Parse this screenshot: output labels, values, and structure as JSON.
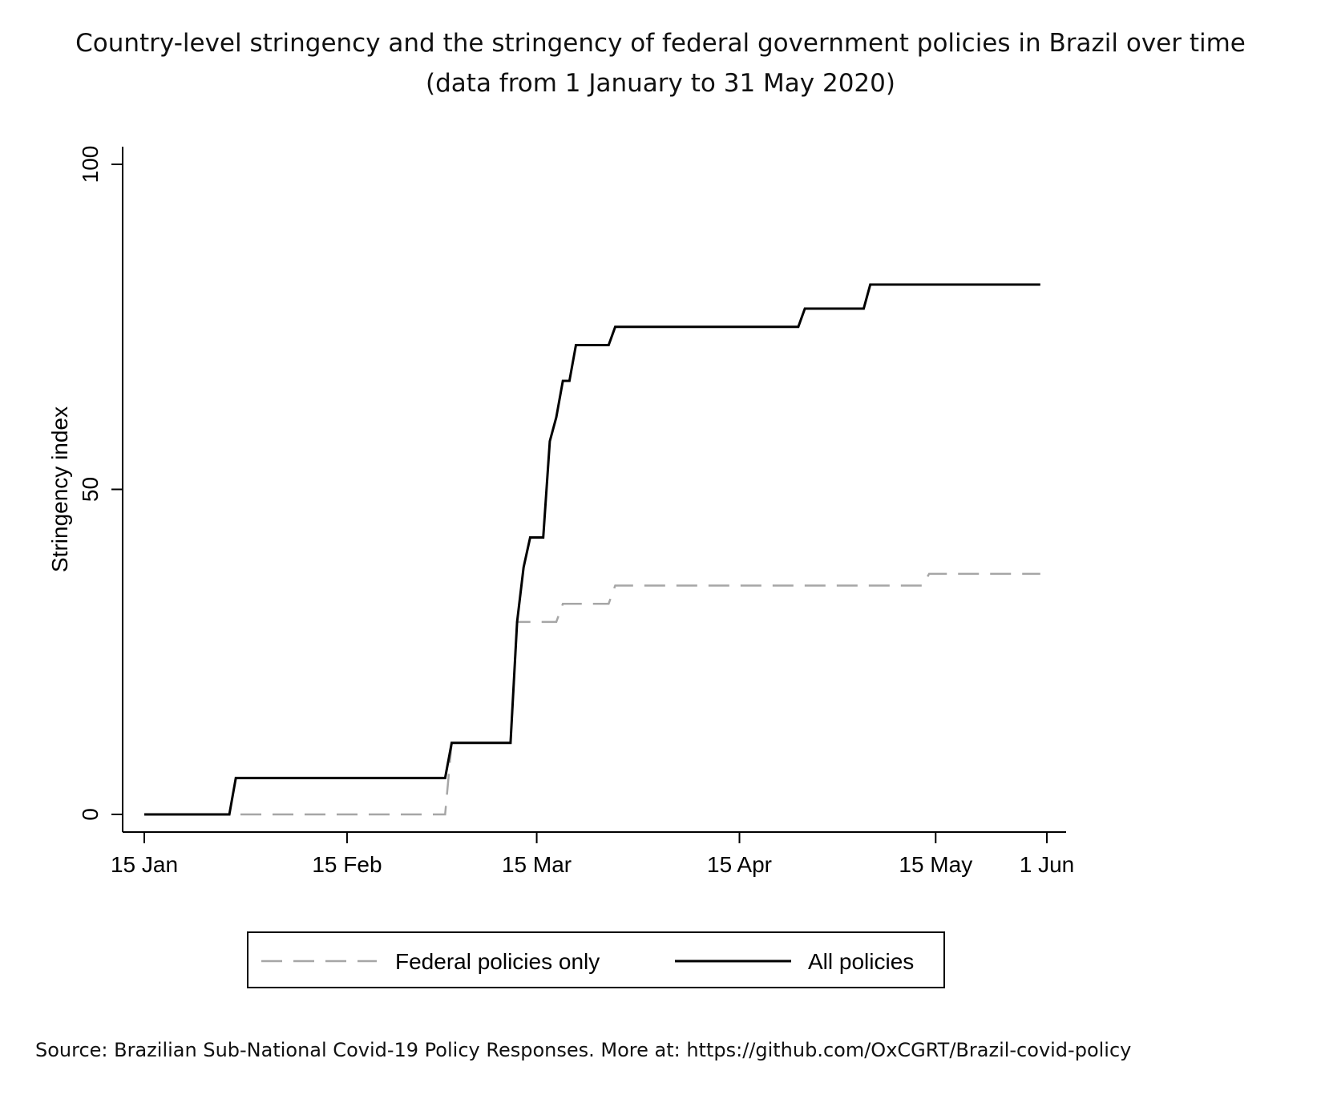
{
  "title_line1": "Country-level stringency and the stringency of federal government policies in Brazil over time",
  "title_line2": "(data from 1 January to 31 May 2020)",
  "source": "Source: Brazilian Sub-National Covid-19 Policy Responses. More at: https://github.com/OxCGRT/Brazil-covid-policy",
  "chart_data": {
    "type": "line",
    "xlabel": "",
    "ylabel": "Stringency index",
    "ylim": [
      0,
      100
    ],
    "y_ticks": [
      0,
      50,
      100
    ],
    "x_ticks": [
      {
        "date": "2020-01-15",
        "label": "15 Jan"
      },
      {
        "date": "2020-02-15",
        "label": "15 Feb"
      },
      {
        "date": "2020-03-15",
        "label": "15 Mar"
      },
      {
        "date": "2020-04-15",
        "label": "15 Apr"
      },
      {
        "date": "2020-05-15",
        "label": "15 May"
      },
      {
        "date": "2020-06-01",
        "label": "1 Jun"
      }
    ],
    "grid": false,
    "legend_position": "bottom",
    "series": [
      {
        "name": "Federal policies only",
        "style": "dashed",
        "color": "#a6a6a6",
        "points": [
          [
            "2020-01-15",
            0
          ],
          [
            "2020-03-01",
            0
          ],
          [
            "2020-03-02",
            11
          ],
          [
            "2020-03-11",
            11
          ],
          [
            "2020-03-12",
            29.6
          ],
          [
            "2020-03-18",
            29.6
          ],
          [
            "2020-03-19",
            32.4
          ],
          [
            "2020-03-26",
            32.4
          ],
          [
            "2020-03-27",
            35.2
          ],
          [
            "2020-05-13",
            35.2
          ],
          [
            "2020-05-14",
            37
          ],
          [
            "2020-05-31",
            37
          ]
        ]
      },
      {
        "name": "All policies",
        "style": "solid",
        "color": "#000000",
        "points": [
          [
            "2020-01-15",
            0
          ],
          [
            "2020-01-28",
            0
          ],
          [
            "2020-01-29",
            5.6
          ],
          [
            "2020-03-01",
            5.6
          ],
          [
            "2020-03-02",
            11
          ],
          [
            "2020-03-11",
            11
          ],
          [
            "2020-03-12",
            29.6
          ],
          [
            "2020-03-13",
            38
          ],
          [
            "2020-03-14",
            42.6
          ],
          [
            "2020-03-16",
            42.6
          ],
          [
            "2020-03-17",
            57.4
          ],
          [
            "2020-03-18",
            61.1
          ],
          [
            "2020-03-19",
            66.7
          ],
          [
            "2020-03-20",
            66.7
          ],
          [
            "2020-03-21",
            72.2
          ],
          [
            "2020-03-26",
            72.2
          ],
          [
            "2020-03-27",
            75
          ],
          [
            "2020-04-24",
            75
          ],
          [
            "2020-04-25",
            77.8
          ],
          [
            "2020-05-04",
            77.8
          ],
          [
            "2020-05-05",
            81.5
          ],
          [
            "2020-05-31",
            81.5
          ]
        ]
      }
    ]
  }
}
